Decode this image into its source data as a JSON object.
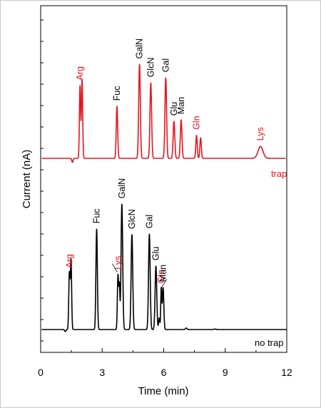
{
  "chart_data": {
    "type": "line",
    "xlabel": "Time (min)",
    "ylabel": "Current (nA)",
    "xlim": [
      0,
      12
    ],
    "xticks": [
      0,
      3,
      6,
      9,
      12
    ],
    "grid": false,
    "colors": {
      "trap": "#e8141e",
      "no_trap": "#000000",
      "axis": "#000000"
    },
    "series": [
      {
        "name": "trap",
        "color": "#e8141e",
        "baseline": 0,
        "noise_dips": [
          {
            "x": 1.55,
            "y": -0.8,
            "w": 0.03
          }
        ],
        "peaks": [
          {
            "label": "Arg",
            "label_color": "#e8141e",
            "x": 1.92,
            "height": 14.5,
            "width": 0.03
          },
          {
            "label": "",
            "x": 2.02,
            "height": 15.8,
            "width": 0.03
          },
          {
            "label": "Fuc",
            "label_color": "#000000",
            "x": 3.72,
            "height": 10.4,
            "width": 0.035
          },
          {
            "label": "GalN",
            "label_color": "#000000",
            "x": 4.82,
            "height": 18.8,
            "width": 0.04
          },
          {
            "label": "GlcN",
            "label_color": "#000000",
            "x": 5.37,
            "height": 15.1,
            "width": 0.04
          },
          {
            "label": "Gal",
            "label_color": "#000000",
            "x": 6.1,
            "height": 16.1,
            "width": 0.04
          },
          {
            "label": "Glu",
            "label_color": "#000000",
            "x": 6.5,
            "height": 7.4,
            "width": 0.04
          },
          {
            "label": "Man",
            "label_color": "#000000",
            "x": 6.85,
            "height": 7.7,
            "width": 0.04
          },
          {
            "label": "Gln",
            "label_color": "#e8141e",
            "x": 7.6,
            "height": 4.6,
            "width": 0.035
          },
          {
            "label": "",
            "x": 7.8,
            "height": 4.1,
            "width": 0.035
          },
          {
            "label": "Lys",
            "label_color": "#e8141e",
            "x": 10.72,
            "height": 2.4,
            "width": 0.12
          }
        ],
        "annotation": "trap"
      },
      {
        "name": "no trap",
        "color": "#000000",
        "baseline": 0,
        "noise_dips": [
          {
            "x": 1.2,
            "y": -0.4,
            "w": 0.03
          },
          {
            "x": 7.1,
            "y": 0.3,
            "w": 0.04
          },
          {
            "x": 8.5,
            "y": 0.1,
            "w": 0.05
          }
        ],
        "peaks": [
          {
            "label": "Arg",
            "label_color": "#e8141e",
            "x": 1.4,
            "height": 11.2,
            "width": 0.03
          },
          {
            "label": "",
            "x": 1.48,
            "height": 13.8,
            "width": 0.03
          },
          {
            "label": "Fuc",
            "label_color": "#000000",
            "x": 2.73,
            "height": 20.1,
            "width": 0.035
          },
          {
            "label": "Lys",
            "label_color": "#e8141e",
            "x": 3.77,
            "height": 10.9,
            "width": 0.03
          },
          {
            "label": "",
            "x": 3.84,
            "height": 8.5,
            "width": 0.025
          },
          {
            "label": "GalN",
            "label_color": "#000000",
            "x": 3.96,
            "height": 25.1,
            "width": 0.04
          },
          {
            "label": "GlcN",
            "label_color": "#000000",
            "x": 4.45,
            "height": 19.0,
            "width": 0.04
          },
          {
            "label": "Gal",
            "label_color": "#000000",
            "x": 5.3,
            "height": 19.1,
            "width": 0.04
          },
          {
            "label": "Glu",
            "label_color": "#000000",
            "x": 5.62,
            "height": 12.7,
            "width": 0.04
          },
          {
            "label": "",
            "x": 5.78,
            "height": 2.3,
            "width": 0.03
          },
          {
            "label": "Gln",
            "label_color": "#e8141e",
            "x": 5.88,
            "height": 8.1,
            "width": 0.025
          },
          {
            "label": "Man",
            "label_color": "#000000",
            "x": 5.97,
            "height": 8.4,
            "width": 0.035
          }
        ],
        "annotation": "no trap"
      }
    ]
  }
}
